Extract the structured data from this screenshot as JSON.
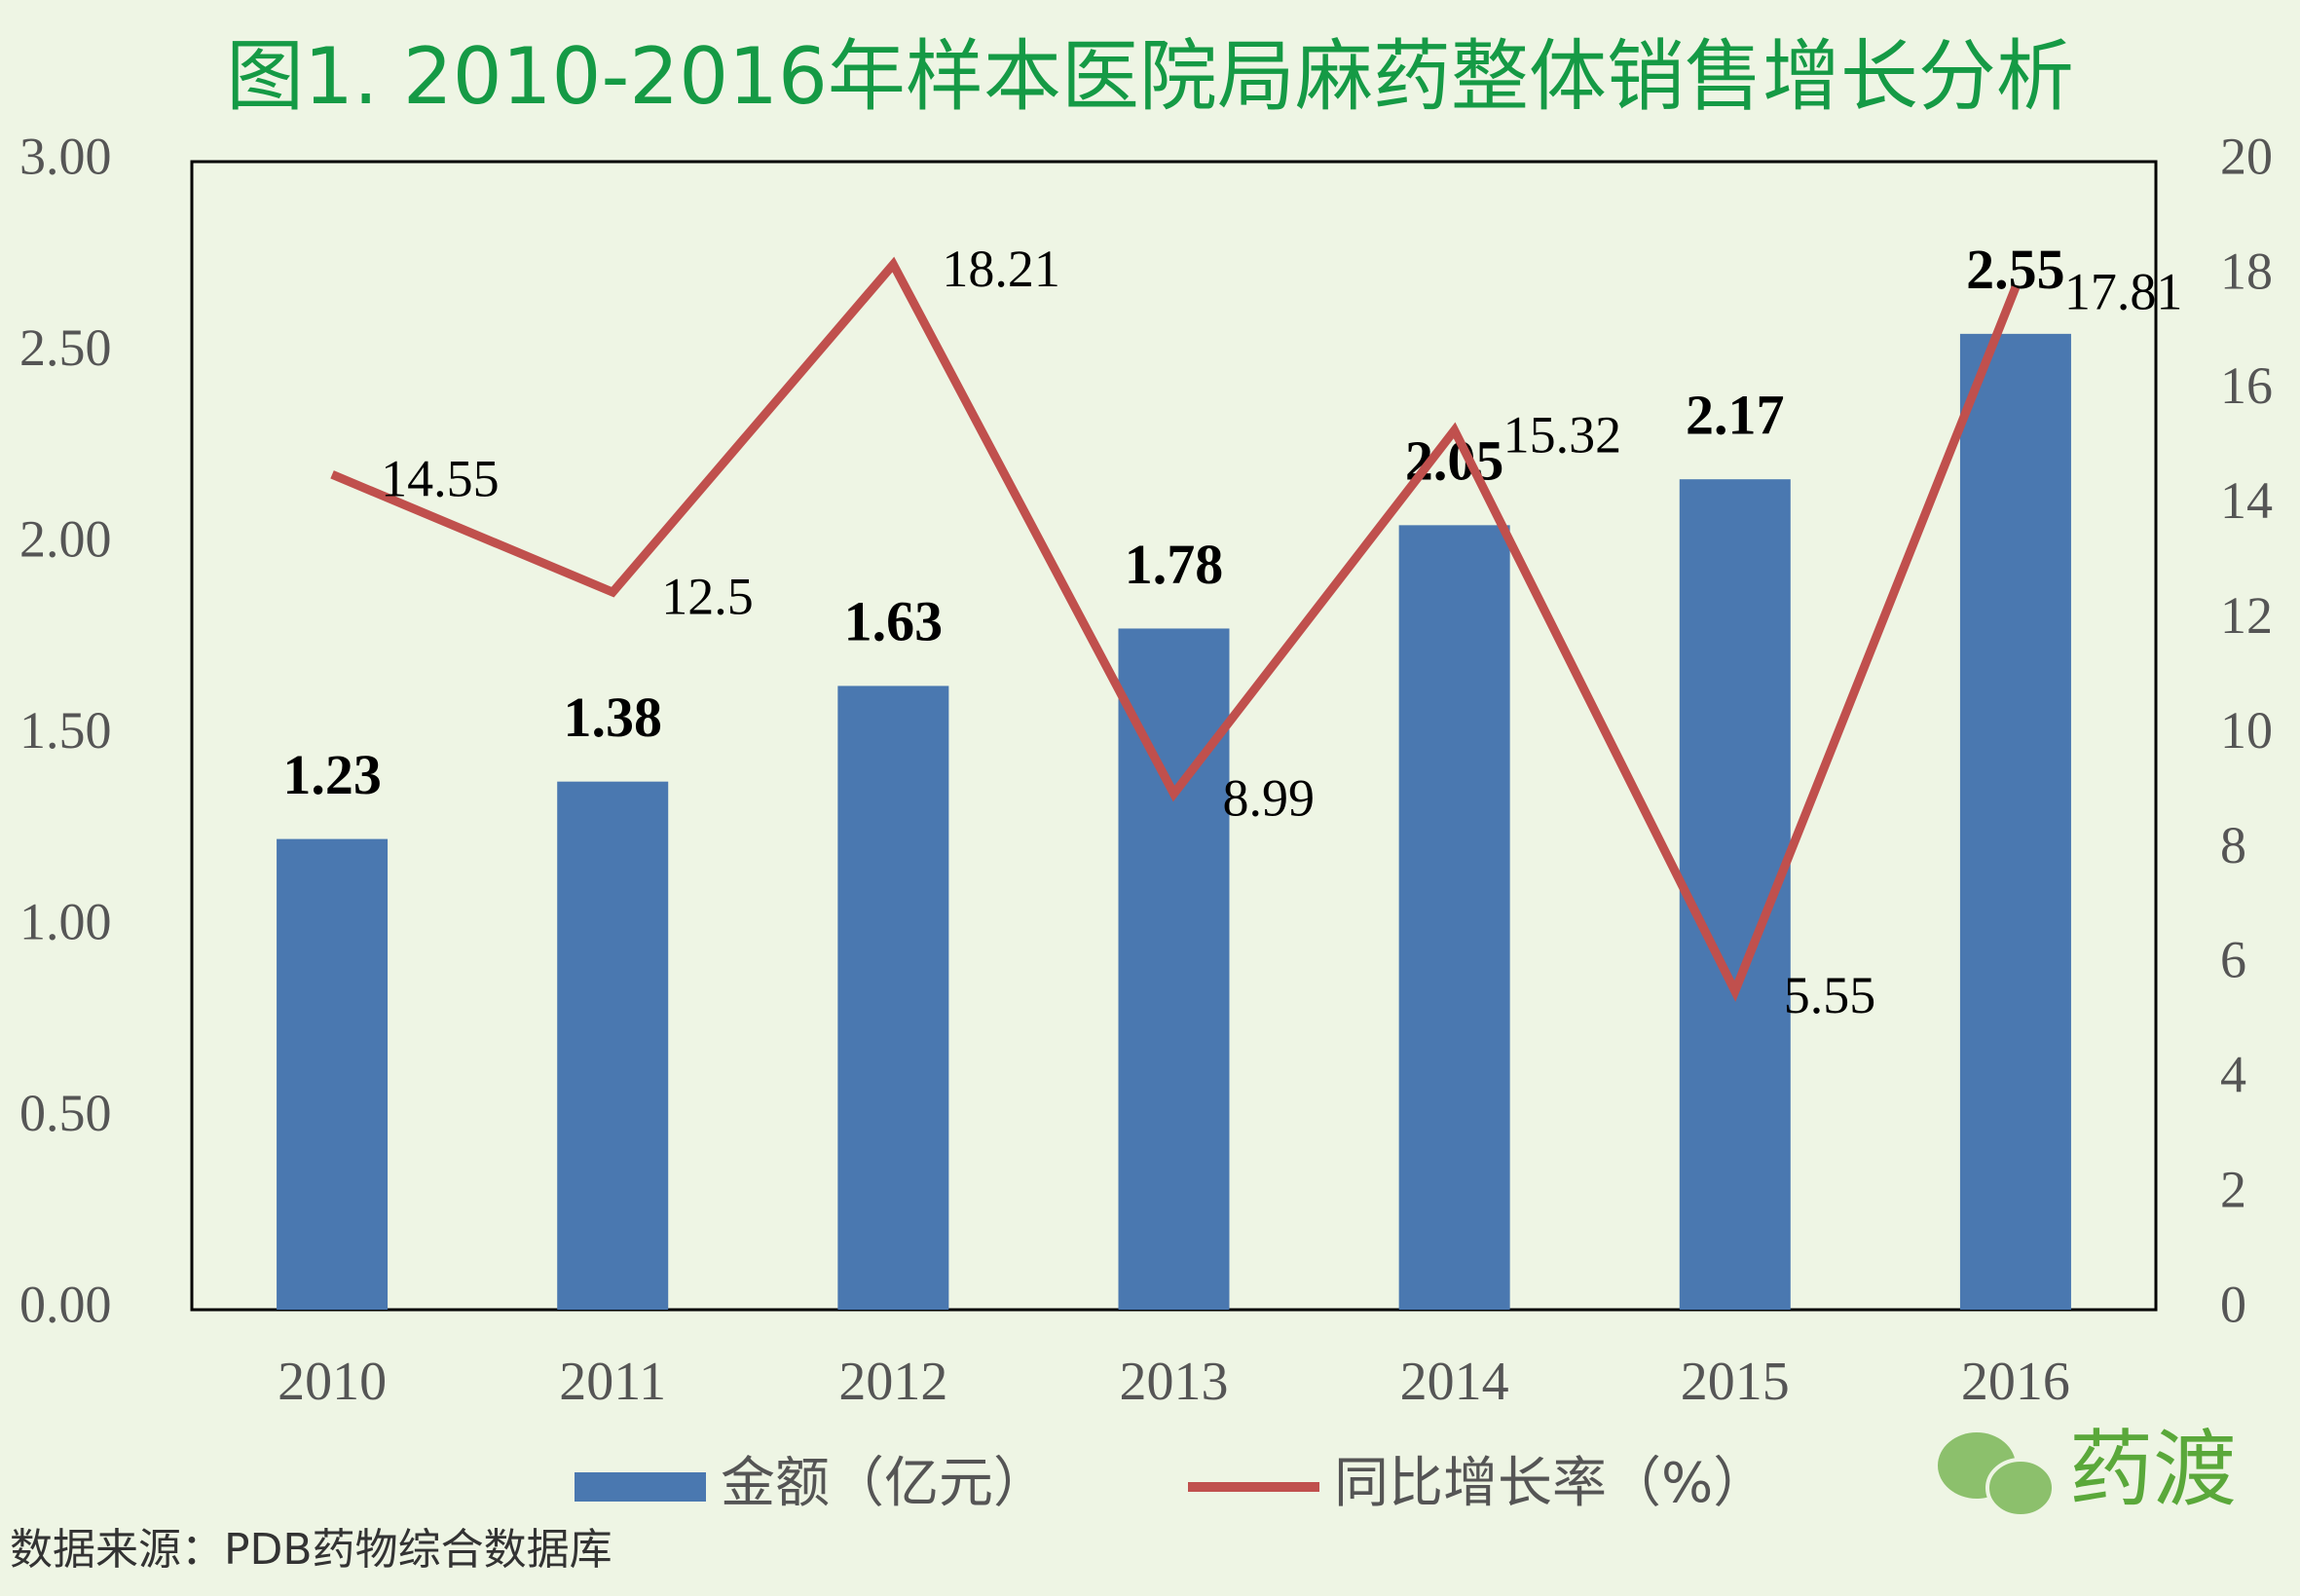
{
  "chart_data": {
    "type": "bar",
    "title": "图1. 2010-2016年样本医院局麻药整体销售增长分析",
    "categories": [
      "2010",
      "2011",
      "2012",
      "2013",
      "2014",
      "2015",
      "2016"
    ],
    "series": [
      {
        "name": "金额（亿元）",
        "type": "bar",
        "color": "#4a78b0",
        "values": [
          1.23,
          1.38,
          1.63,
          1.78,
          2.05,
          2.17,
          2.55
        ]
      },
      {
        "name": "同比增长率（%）",
        "type": "line",
        "axis": "y2",
        "color": "#c0504d",
        "values": [
          14.55,
          12.5,
          18.21,
          8.99,
          15.32,
          5.55,
          17.81
        ]
      }
    ],
    "ylim": [
      0,
      3
    ],
    "yticks": [
      {
        "value": 0,
        "label": "0.00"
      },
      {
        "value": 0.5,
        "label": "0.50"
      },
      {
        "value": 1,
        "label": "1.00"
      },
      {
        "value": 1.5,
        "label": "1.50"
      },
      {
        "value": 2,
        "label": "2.00"
      },
      {
        "value": 2.5,
        "label": "2.50"
      },
      {
        "value": 3,
        "label": "3.00"
      }
    ],
    "y2lim": [
      0,
      20
    ],
    "y2ticks": [
      0,
      2,
      4,
      6,
      8,
      10,
      12,
      14,
      16,
      18,
      20
    ],
    "source": "数据来源：PDB药物综合数据库",
    "watermark": "药渡"
  }
}
